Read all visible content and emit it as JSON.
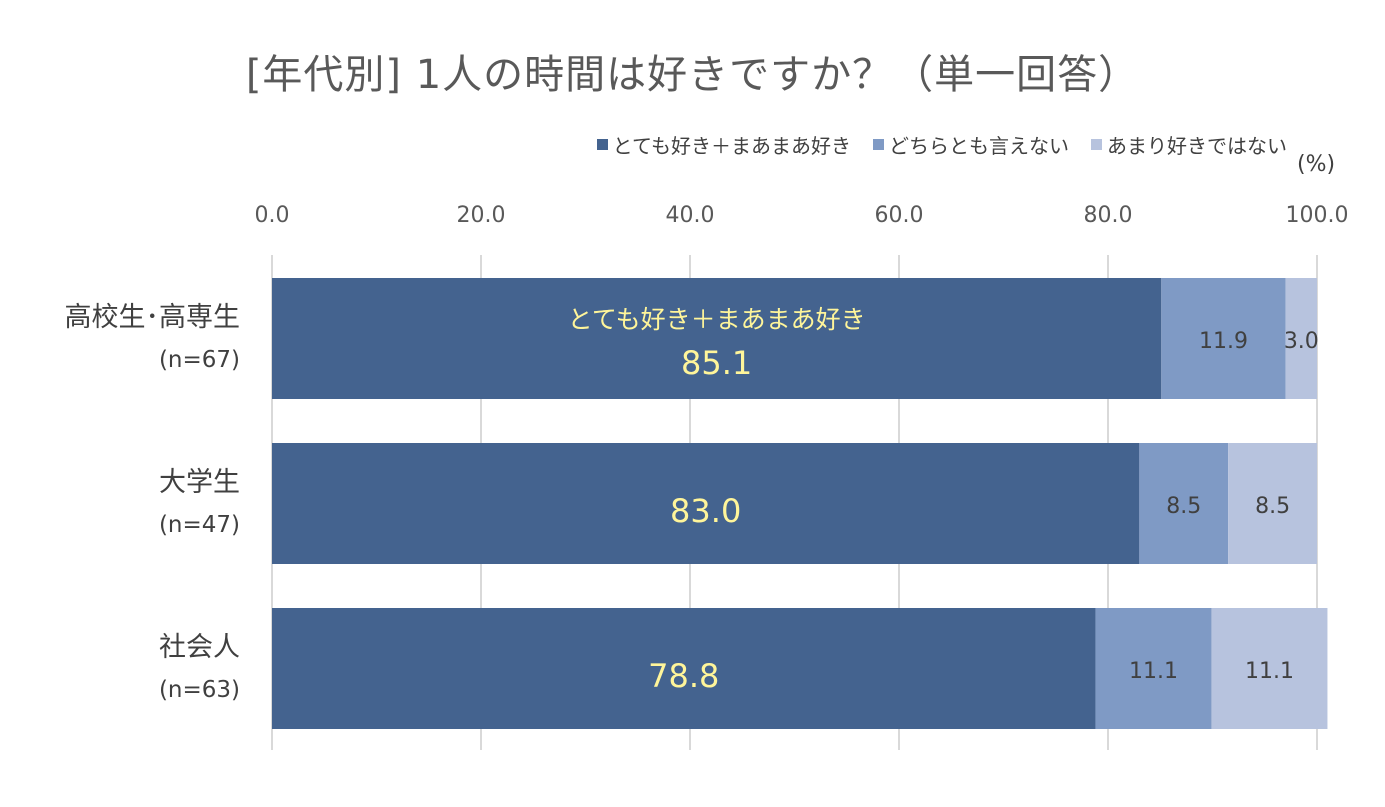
{
  "chart_data": {
    "type": "bar",
    "orientation": "horizontal",
    "stacked": true,
    "title": "[年代別] 1人の時間は好きですか？（単一回答）",
    "unit": "(%)",
    "xlim": [
      0,
      100
    ],
    "x_ticks": [
      "0.0",
      "20.0",
      "40.0",
      "60.0",
      "80.0",
      "100.0"
    ],
    "grid": true,
    "legend_position": "top-right",
    "categories": [
      {
        "name": "高校生･高専生",
        "n": "(n=67)"
      },
      {
        "name": "大学生",
        "n": "(n=47)"
      },
      {
        "name": "社会人",
        "n": "(n=63)"
      }
    ],
    "series": [
      {
        "name": "とても好き＋まあまあ好き",
        "color": "#44638F",
        "values": [
          85.1,
          83.0,
          78.8
        ],
        "labels": [
          "85.1",
          "83.0",
          "78.8"
        ]
      },
      {
        "name": "どちらとも言えない",
        "color": "#7F9AC5",
        "values": [
          11.9,
          8.5,
          11.1
        ],
        "labels": [
          "11.9",
          "8.5",
          "11.1"
        ]
      },
      {
        "name": "あまり好きではない",
        "color": "#B7C3DE",
        "values": [
          3.0,
          8.5,
          11.1
        ],
        "labels": [
          "3.0",
          "8.5",
          "11.1"
        ]
      }
    ],
    "annotation": "とても好き＋まあまあ好き"
  }
}
